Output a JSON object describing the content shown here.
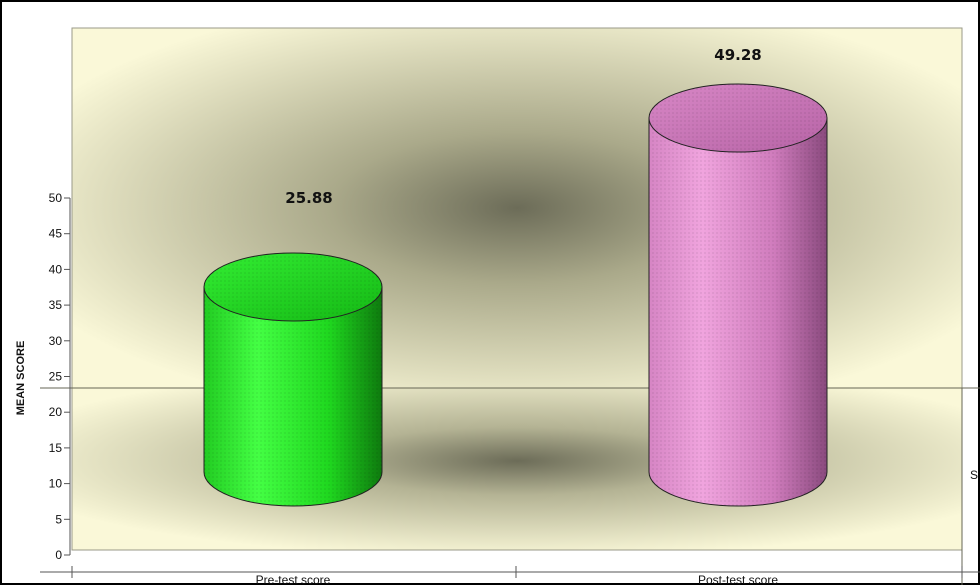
{
  "chart_data": {
    "type": "bar",
    "style": "3d-cylinder",
    "categories": [
      "Pre-test score",
      "Post-test score"
    ],
    "values": [
      25.88,
      49.28
    ],
    "data_labels": [
      "25.88",
      "49.28"
    ],
    "bar_colors": [
      "#22dd22",
      "#d77fc2"
    ],
    "ylabel": "MEAN SCORE",
    "xlabel": "",
    "ylim": [
      0,
      50
    ],
    "yticks": [
      0,
      5,
      10,
      15,
      20,
      25,
      30,
      35,
      40,
      45,
      50
    ],
    "ytick_labels": [
      "0",
      "5",
      "10",
      "15",
      "20",
      "25",
      "30",
      "35",
      "40",
      "45",
      "50"
    ],
    "grid": false,
    "legend": false
  },
  "edge_text": "S",
  "colors": {
    "plot_background_outer": "#f8f6d4",
    "plot_background_inner": "#7a7a62",
    "frame": "#000000",
    "axis": "#555555"
  }
}
